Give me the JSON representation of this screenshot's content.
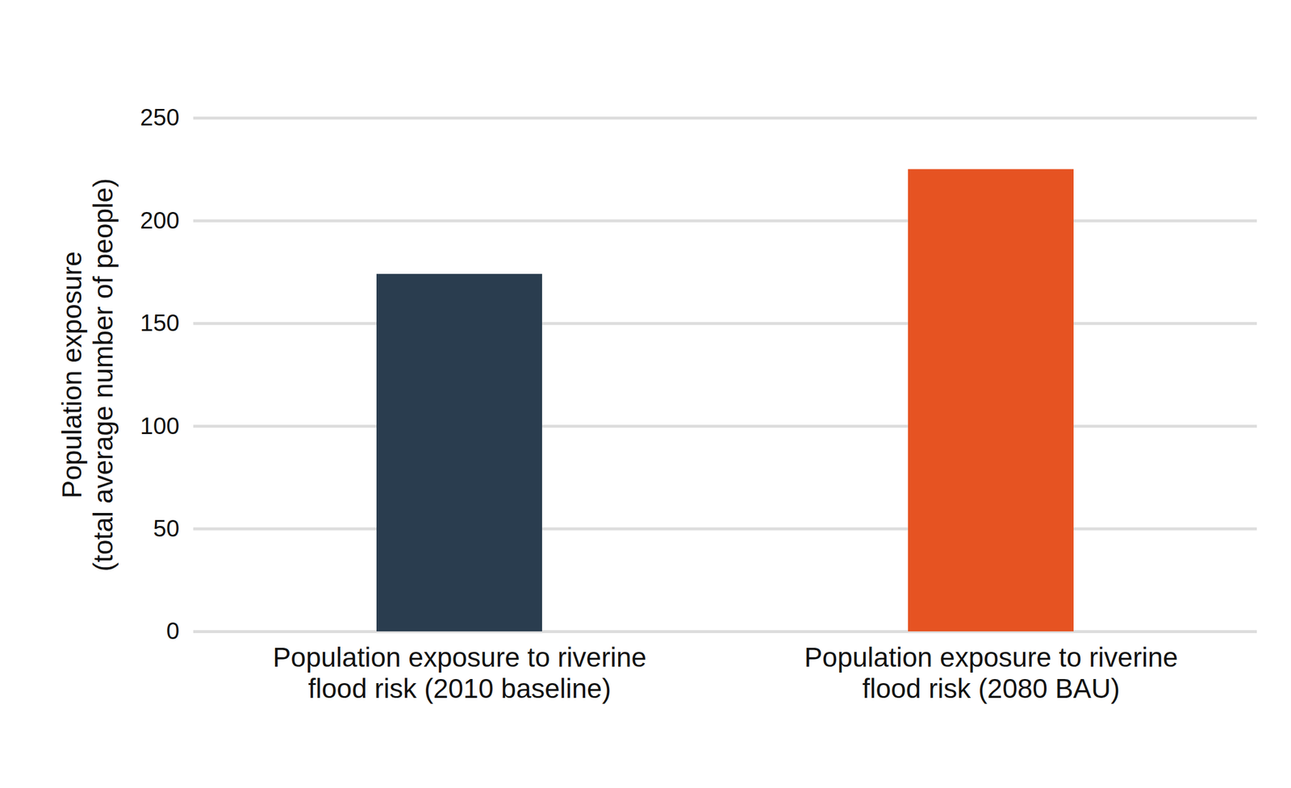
{
  "chart_data": {
    "type": "bar",
    "ylabel": "Population exposure\n(total average number of people)",
    "categories": [
      "Population exposure to riverine\nflood risk (2010 baseline)",
      "Population exposure to riverine\nflood risk (2080 BAU)"
    ],
    "values": [
      174,
      225
    ],
    "colors": [
      "#2a3d4f",
      "#e65322"
    ],
    "ylim": [
      0,
      250
    ],
    "yticks": [
      0,
      50,
      100,
      150,
      200,
      250
    ],
    "grid": true
  }
}
